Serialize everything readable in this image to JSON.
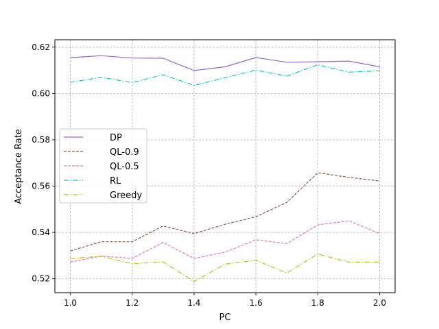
{
  "chart_data": {
    "type": "line",
    "title": "",
    "xlabel": "PC",
    "ylabel": "Acceptance Rate",
    "x": [
      1.0,
      1.1,
      1.2,
      1.3,
      1.4,
      1.5,
      1.6,
      1.7,
      1.8,
      1.9,
      2.0
    ],
    "xlim": [
      0.95,
      2.05
    ],
    "ylim": [
      0.514,
      0.6232
    ],
    "xticks": [
      1.0,
      1.2,
      1.4,
      1.6,
      1.8,
      2.0
    ],
    "xtick_labels": [
      "1.0",
      "1.2",
      "1.4",
      "1.6",
      "1.8",
      "2.0"
    ],
    "yticks": [
      0.52,
      0.54,
      0.56,
      0.58,
      0.6,
      0.62
    ],
    "ytick_labels": [
      "0.52",
      "0.54",
      "0.56",
      "0.58",
      "0.60",
      "0.62"
    ],
    "grid": true,
    "legend_position": "center-left",
    "series": [
      {
        "name": "DP",
        "color": "#9467bd",
        "dash": "solid",
        "values": [
          0.6155,
          0.6163,
          0.6153,
          0.6152,
          0.6099,
          0.6115,
          0.6155,
          0.6135,
          0.6137,
          0.614,
          0.6115
        ]
      },
      {
        "name": "QL-0.9",
        "color": "#8c564b",
        "dash": "dashed",
        "values": [
          0.532,
          0.536,
          0.536,
          0.5428,
          0.5395,
          0.5435,
          0.5468,
          0.553,
          0.5658,
          0.5638,
          0.5622
        ]
      },
      {
        "name": "QL-0.5",
        "color": "#e377c2",
        "dash": "dashed",
        "values": [
          0.5272,
          0.5298,
          0.5288,
          0.5357,
          0.5288,
          0.5315,
          0.5368,
          0.5352,
          0.5433,
          0.545,
          0.5395
        ]
      },
      {
        "name": "RL",
        "color": "#17becf",
        "dash": "dashdot",
        "values": [
          0.6048,
          0.607,
          0.6047,
          0.6081,
          0.6035,
          0.6068,
          0.6101,
          0.6075,
          0.6124,
          0.6092,
          0.6098
        ]
      },
      {
        "name": "Greedy",
        "color": "#bcbd22",
        "dash": "dashdot",
        "values": [
          0.5287,
          0.5297,
          0.5265,
          0.5273,
          0.5188,
          0.5263,
          0.528,
          0.5225,
          0.5307,
          0.5272,
          0.5272
        ]
      }
    ]
  }
}
